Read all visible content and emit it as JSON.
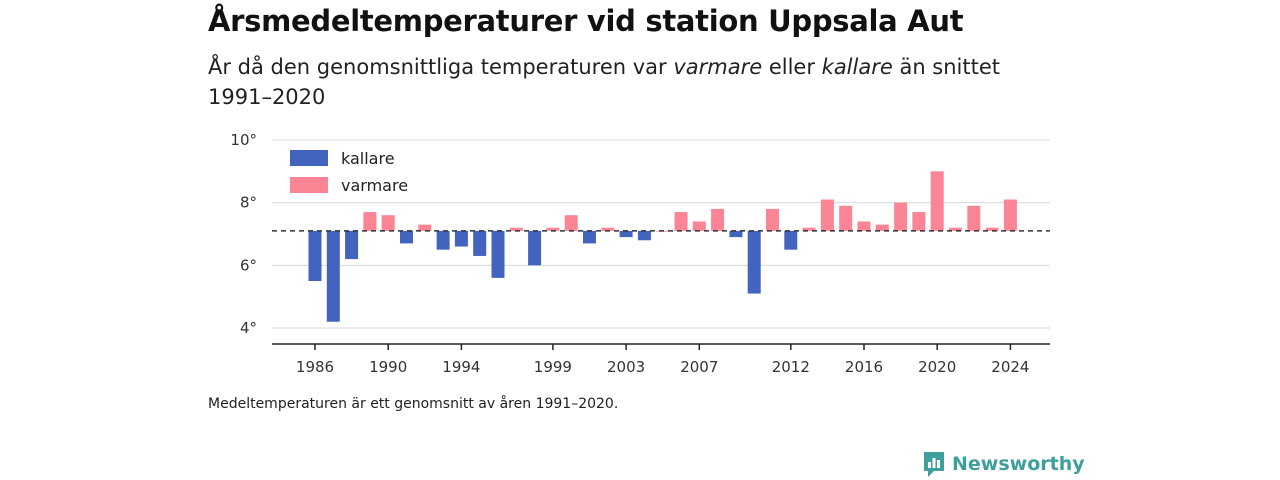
{
  "title": "Årsmedeltemperaturer vid station Uppsala Aut",
  "subtitle": {
    "part1": "År då den genomsnittliga temperaturen var ",
    "warm": "varmare",
    "part2": " eller ",
    "cold": "kallare",
    "part3": " än snittet 1991–2020"
  },
  "note": "Medeltemperaturen är ett genomsnitt av åren 1991–2020.",
  "brand": {
    "name": "Newsworthy",
    "icon": "newsworthy-logo-icon",
    "color": "#3f9f9c"
  },
  "colors": {
    "colder": "#4263be",
    "warmer": "#fb8495"
  },
  "chart_data": {
    "type": "bar",
    "title": "Årsmedeltemperaturer vid station Uppsala Aut",
    "xlabel": "",
    "ylabel": "",
    "baseline": 7.1,
    "ylim": [
      3.6,
      10
    ],
    "yticks": [
      4,
      6,
      8,
      10
    ],
    "ytick_labels": [
      "4°",
      "6°",
      "8°",
      "10°"
    ],
    "xticks": [
      1986,
      1990,
      1994,
      1999,
      2003,
      2007,
      2012,
      2016,
      2020,
      2024
    ],
    "grid": true,
    "legend": {
      "position": "top-left",
      "items": [
        {
          "key": "colder",
          "label": "kallare"
        },
        {
          "key": "warmer",
          "label": "varmare"
        }
      ]
    },
    "x": [
      1986,
      1987,
      1988,
      1989,
      1990,
      1991,
      1992,
      1993,
      1994,
      1995,
      1996,
      1997,
      1998,
      1999,
      2000,
      2001,
      2002,
      2003,
      2004,
      2005,
      2006,
      2007,
      2008,
      2009,
      2010,
      2011,
      2012,
      2013,
      2014,
      2015,
      2016,
      2017,
      2018,
      2019,
      2020,
      2021,
      2022,
      2023,
      2024
    ],
    "values": [
      5.5,
      4.2,
      6.2,
      7.7,
      7.6,
      6.7,
      7.3,
      6.5,
      6.6,
      6.3,
      5.6,
      7.2,
      6.0,
      7.2,
      7.6,
      6.7,
      7.2,
      6.9,
      6.8,
      7.1,
      7.7,
      7.4,
      7.8,
      6.9,
      5.1,
      7.8,
      6.5,
      7.2,
      8.1,
      7.9,
      7.4,
      7.3,
      8.0,
      7.7,
      9.0,
      7.2,
      7.9,
      7.2,
      8.1
    ]
  }
}
